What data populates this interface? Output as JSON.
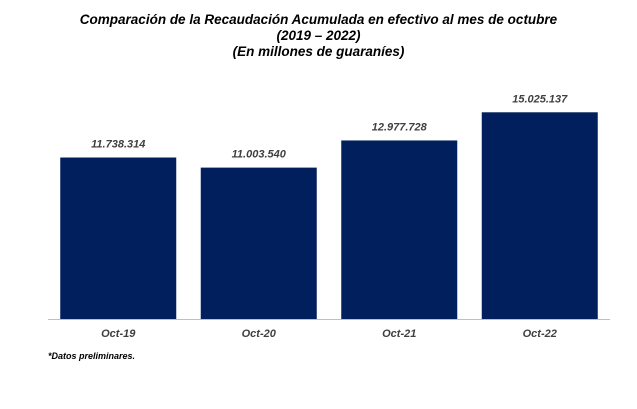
{
  "chart_data": {
    "type": "bar",
    "title": "Comparación de la Recaudación Acumulada en efectivo al mes de octubre",
    "subtitle": "(2019 – 2022)",
    "unit_note": "(En millones de guaraníes)",
    "categories": [
      "Oct-19",
      "Oct-20",
      "Oct-21",
      "Oct-22"
    ],
    "values": [
      11738314,
      11003540,
      12977728,
      15025137
    ],
    "value_labels": [
      "11.738.314",
      "11.003.540",
      "12.977.728",
      "15.025.137"
    ],
    "ylim": [
      0,
      16500000
    ],
    "grid": false,
    "legend": "none",
    "bar_color": "#001f5c",
    "footnote": "*Datos preliminares."
  }
}
